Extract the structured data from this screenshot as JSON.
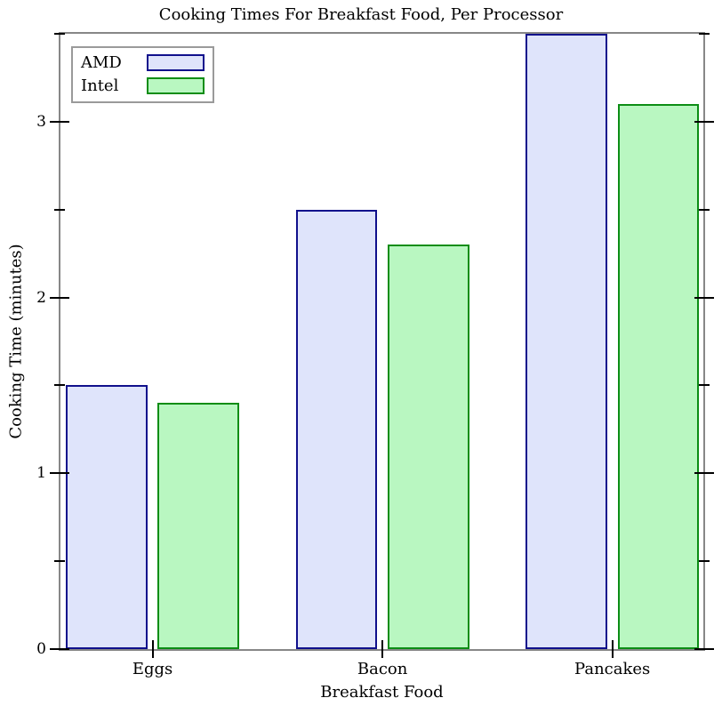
{
  "chart_data": {
    "type": "bar",
    "title": "Cooking Times For Breakfast Food, Per Processor",
    "xlabel": "Breakfast Food",
    "ylabel": "Cooking Time (minutes)",
    "categories": [
      "Eggs",
      "Bacon",
      "Pancakes"
    ],
    "series": [
      {
        "name": "AMD",
        "values": [
          1.5,
          2.5,
          3.5
        ],
        "fill": "#dfe4fb",
        "border": "#10108c"
      },
      {
        "name": "Intel",
        "values": [
          1.4,
          2.3,
          3.1
        ],
        "fill": "#b9f7c1",
        "border": "#0c8d15"
      }
    ],
    "ylim": [
      0,
      3.5
    ],
    "yticks_major": [
      0,
      1,
      2,
      3
    ],
    "yticks_minor": [
      0.5,
      1.5,
      2.5,
      3.5
    ],
    "legend_position": "top-left",
    "grid": false
  },
  "colors": {
    "frame": "#878787",
    "tick": "#000000",
    "legend_border": "#9a9a9a",
    "background": "#ffffff"
  }
}
